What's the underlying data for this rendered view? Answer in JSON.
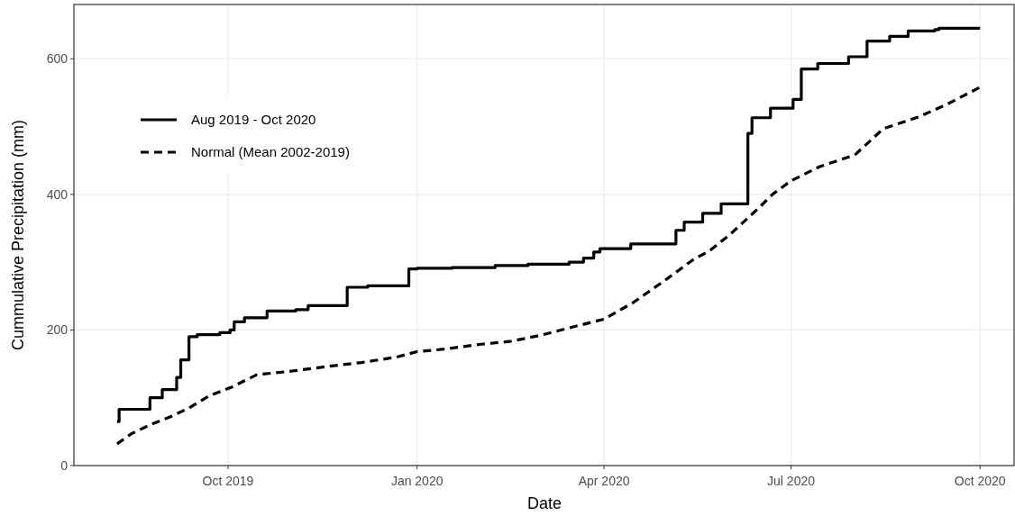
{
  "chart_data": {
    "type": "line",
    "xlabel": "Date",
    "ylabel": "Cummulative Precipitation (mm)",
    "xlim": [
      "2019-07-18",
      "2020-10-18"
    ],
    "ylim": [
      0,
      680
    ],
    "xticks": [
      {
        "value": "2019-10-01",
        "label": "Oct 2019"
      },
      {
        "value": "2020-01-01",
        "label": "Jan 2020"
      },
      {
        "value": "2020-04-01",
        "label": "Apr 2020"
      },
      {
        "value": "2020-07-01",
        "label": "Jul 2020"
      },
      {
        "value": "2020-10-01",
        "label": "Oct 2020"
      }
    ],
    "yticks": [
      0,
      200,
      400,
      600
    ],
    "grid": true,
    "legend": "top left",
    "series": [
      {
        "name": "Aug 2019 - Oct 2020",
        "type": "step",
        "color": "#000000",
        "line_style": "solid",
        "x": [
          "2019-08-08",
          "2019-08-09",
          "2019-08-24",
          "2019-08-30",
          "2019-09-06",
          "2019-09-08",
          "2019-09-12",
          "2019-09-16",
          "2019-09-27",
          "2019-10-02",
          "2019-10-04",
          "2019-10-09",
          "2019-10-20",
          "2019-11-03",
          "2019-11-09",
          "2019-11-28",
          "2019-12-08",
          "2019-12-28",
          "2020-01-01",
          "2020-01-18",
          "2020-02-08",
          "2020-02-24",
          "2020-03-15",
          "2020-03-22",
          "2020-03-27",
          "2020-03-30",
          "2020-04-14",
          "2020-05-06",
          "2020-05-10",
          "2020-05-19",
          "2020-05-28",
          "2020-06-10",
          "2020-06-12",
          "2020-06-21",
          "2020-07-02",
          "2020-07-06",
          "2020-07-14",
          "2020-07-29",
          "2020-08-07",
          "2020-08-18",
          "2020-08-27",
          "2020-09-09",
          "2020-09-11",
          "2020-10-01"
        ],
        "values": [
          65,
          83,
          100,
          112,
          130,
          156,
          190,
          193,
          196,
          200,
          212,
          218,
          228,
          230,
          236,
          263,
          265,
          290,
          291,
          292,
          295,
          297,
          300,
          306,
          315,
          320,
          327,
          347,
          359,
          372,
          386,
          490,
          513,
          527,
          540,
          585,
          593,
          603,
          626,
          633,
          641,
          643,
          645,
          645
        ]
      },
      {
        "name": "Normal (Mean 2002-2019)",
        "color": "#000000",
        "line_style": "dashed",
        "x": [
          "2019-08-08",
          "2019-08-15",
          "2019-08-24",
          "2019-09-03",
          "2019-09-12",
          "2019-09-22",
          "2019-10-03",
          "2019-10-15",
          "2019-10-31",
          "2019-11-18",
          "2019-12-05",
          "2019-12-22",
          "2020-01-01",
          "2020-01-15",
          "2020-02-01",
          "2020-02-15",
          "2020-03-01",
          "2020-03-15",
          "2020-04-01",
          "2020-04-15",
          "2020-05-01",
          "2020-05-15",
          "2020-05-22",
          "2020-06-01",
          "2020-06-15",
          "2020-06-22",
          "2020-07-01",
          "2020-07-15",
          "2020-08-01",
          "2020-08-15",
          "2020-09-01",
          "2020-09-15",
          "2020-10-01"
        ],
        "values": [
          32,
          47,
          60,
          72,
          85,
          103,
          116,
          134,
          139,
          146,
          152,
          160,
          168,
          172,
          179,
          183,
          192,
          203,
          216,
          240,
          274,
          305,
          316,
          340,
          379,
          400,
          420,
          441,
          458,
          497,
          514,
          533,
          558
        ]
      }
    ]
  }
}
